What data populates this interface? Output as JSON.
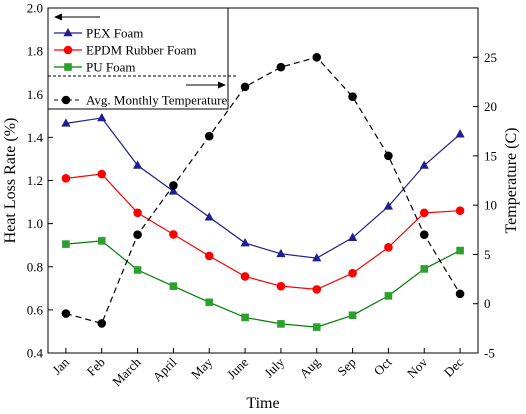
{
  "chart_data": {
    "type": "line",
    "title": "",
    "xlabel": "Time",
    "ylabel": "Heat Loss Rate (%)",
    "y2label": "Temperature (C)",
    "categories": [
      "Jan",
      "Feb",
      "March",
      "April",
      "May",
      "June",
      "July",
      "Aug",
      "Sep",
      "Oct",
      "Nov",
      "Dec"
    ],
    "ylim": [
      0.4,
      2.0
    ],
    "yticks": [
      "0.4",
      "0.6",
      "0.8",
      "1.0",
      "1.2",
      "1.4",
      "1.6",
      "1.8",
      "2.0"
    ],
    "y2lim": [
      -5,
      30
    ],
    "y2ticks": [
      "-5",
      "0",
      "5",
      "10",
      "15",
      "20",
      "25"
    ],
    "grid": false,
    "legend_position": "top-left",
    "series": [
      {
        "name": "PEX Foam",
        "axis": "left",
        "marker": "triangle",
        "line_style": "solid",
        "color": "#1f1f8f",
        "marker_color": "#1f1f8f",
        "values": [
          1.465,
          1.49,
          1.27,
          1.15,
          1.03,
          0.91,
          0.86,
          0.84,
          0.935,
          1.08,
          1.27,
          1.415
        ]
      },
      {
        "name": "EPDM Rubber Foam",
        "axis": "left",
        "marker": "circle",
        "line_style": "solid",
        "color": "#ff0000",
        "marker_color": "#ff0000",
        "values": [
          1.21,
          1.23,
          1.05,
          0.95,
          0.85,
          0.755,
          0.71,
          0.695,
          0.77,
          0.89,
          1.05,
          1.06
        ]
      },
      {
        "name": "PU Foam",
        "axis": "left",
        "marker": "square",
        "line_style": "solid",
        "color": "#008000",
        "marker_color": "#2ca02c",
        "values": [
          0.905,
          0.92,
          0.785,
          0.71,
          0.635,
          0.565,
          0.535,
          0.52,
          0.575,
          0.665,
          0.79,
          0.875
        ]
      },
      {
        "name": "Avg. Monthly Temperature",
        "axis": "right",
        "marker": "circle",
        "line_style": "dashed",
        "color": "#000000",
        "marker_color": "#000000",
        "values": [
          -1,
          -2,
          7,
          12,
          17,
          22,
          24,
          25,
          21,
          15,
          7,
          1
        ]
      }
    ]
  }
}
